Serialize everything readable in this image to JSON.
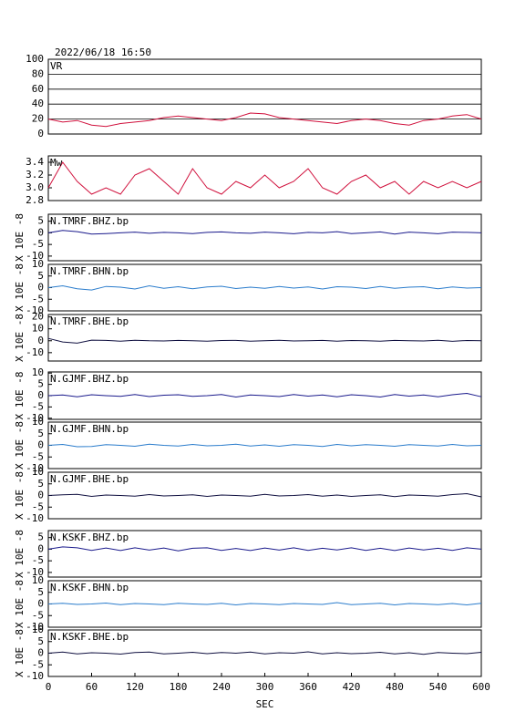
{
  "chart_data": [
    {
      "type": "line",
      "title": "2022/06/18 16:50",
      "grid": true,
      "xlim": [
        0,
        600
      ],
      "ylim": [
        0,
        100
      ],
      "yticks": [
        0,
        20,
        40,
        60,
        80,
        100
      ],
      "x": [
        0,
        20,
        40,
        60,
        80,
        100,
        120,
        140,
        160,
        180,
        200,
        220,
        240,
        260,
        280,
        300,
        320,
        340,
        360,
        380,
        400,
        420,
        440,
        460,
        480,
        500,
        520,
        540,
        560,
        580,
        600
      ],
      "series": [
        {
          "name": "VR",
          "color": "#d0103c",
          "values": [
            20,
            16,
            18,
            12,
            10,
            14,
            16,
            18,
            22,
            24,
            22,
            20,
            18,
            22,
            28,
            27,
            22,
            20,
            18,
            16,
            14,
            18,
            20,
            18,
            14,
            12,
            18,
            20,
            24,
            26,
            20
          ]
        }
      ]
    },
    {
      "type": "line",
      "grid": false,
      "xlim": [
        0,
        600
      ],
      "ylim": [
        2.8,
        3.5
      ],
      "yticks": [
        2.8,
        {
          "value": 3.0,
          "label": "3.0"
        },
        3.2,
        3.4
      ],
      "x": [
        0,
        20,
        40,
        60,
        80,
        100,
        120,
        140,
        160,
        180,
        200,
        220,
        240,
        260,
        280,
        300,
        320,
        340,
        360,
        380,
        400,
        420,
        440,
        460,
        480,
        500,
        520,
        540,
        560,
        580,
        600
      ],
      "series": [
        {
          "name": "Mw",
          "color": "#d0103c",
          "values": [
            3.0,
            3.4,
            3.1,
            2.9,
            3.0,
            2.9,
            3.2,
            3.3,
            3.1,
            2.9,
            3.3,
            3.0,
            2.9,
            3.1,
            3.0,
            3.2,
            3.0,
            3.1,
            3.3,
            3.0,
            2.9,
            3.1,
            3.2,
            3.0,
            3.1,
            2.9,
            3.1,
            3.0,
            3.1,
            3.0,
            3.1
          ]
        }
      ]
    },
    {
      "type": "line",
      "ylabel": "X 10E -8",
      "xlim": [
        0,
        600
      ],
      "ylim": [
        -12,
        8
      ],
      "yticks": [
        -10,
        -5,
        0,
        5
      ],
      "x": [
        0,
        20,
        40,
        60,
        80,
        100,
        120,
        140,
        160,
        180,
        200,
        220,
        240,
        260,
        280,
        300,
        320,
        340,
        360,
        380,
        400,
        420,
        440,
        460,
        480,
        500,
        520,
        540,
        560,
        580,
        600
      ],
      "series": [
        {
          "name": "N.TMRF.BHZ.bp",
          "color": "#1a1a8c",
          "values": [
            0,
            1,
            0.5,
            -0.5,
            -0.3,
            0,
            0.3,
            -0.2,
            0.2,
            0,
            -0.3,
            0.2,
            0.4,
            0,
            -0.2,
            0.3,
            0,
            -0.4,
            0.2,
            0,
            0.5,
            -0.3,
            0,
            0.4,
            -0.5,
            0.3,
            0,
            -0.4,
            0.3,
            0.2,
            0
          ]
        }
      ]
    },
    {
      "type": "line",
      "ylabel": "X 10E -8",
      "xlim": [
        0,
        600
      ],
      "ylim": [
        -10,
        10
      ],
      "yticks": [
        -10,
        -5,
        0,
        5,
        10
      ],
      "x": [
        0,
        20,
        40,
        60,
        80,
        100,
        120,
        140,
        160,
        180,
        200,
        220,
        240,
        260,
        280,
        300,
        320,
        340,
        360,
        380,
        400,
        420,
        440,
        460,
        480,
        500,
        520,
        540,
        560,
        580,
        600
      ],
      "series": [
        {
          "name": "N.TMRF.BHN.bp",
          "color": "#2a7ccc",
          "values": [
            0,
            0.8,
            -0.5,
            -1,
            0.5,
            0.2,
            -0.6,
            0.8,
            -0.3,
            0.4,
            -0.5,
            0.3,
            0.6,
            -0.4,
            0.2,
            -0.3,
            0.5,
            -0.2,
            0.3,
            -0.6,
            0.4,
            0.2,
            -0.4,
            0.5,
            -0.3,
            0.2,
            0.4,
            -0.5,
            0.3,
            -0.2,
            0
          ]
        }
      ]
    },
    {
      "type": "line",
      "ylabel": "X 10E -8",
      "xlim": [
        0,
        600
      ],
      "ylim": [
        -17,
        22
      ],
      "yticks": [
        -10,
        0,
        10,
        20
      ],
      "x": [
        0,
        20,
        40,
        60,
        80,
        100,
        120,
        140,
        160,
        180,
        200,
        220,
        240,
        260,
        280,
        300,
        320,
        340,
        360,
        380,
        400,
        420,
        440,
        460,
        480,
        500,
        520,
        540,
        560,
        580,
        600
      ],
      "series": [
        {
          "name": "N.TMRF.BHE.bp",
          "color": "#101040",
          "values": [
            2,
            -1,
            -2,
            0.5,
            0.3,
            -0.3,
            0.4,
            0,
            -0.2,
            0.3,
            0,
            -0.4,
            0.2,
            0.3,
            -0.3,
            0,
            0.4,
            -0.2,
            0,
            0.3,
            -0.4,
            0.2,
            0,
            -0.3,
            0.3,
            0,
            -0.2,
            0.4,
            -0.5,
            0.2,
            0
          ]
        }
      ]
    },
    {
      "type": "line",
      "ylabel": "X 10E -8",
      "xlim": [
        0,
        600
      ],
      "ylim": [
        -10.5,
        10.5
      ],
      "yticks": [
        -10,
        -5,
        0,
        5,
        10
      ],
      "x": [
        0,
        20,
        40,
        60,
        80,
        100,
        120,
        140,
        160,
        180,
        200,
        220,
        240,
        260,
        280,
        300,
        320,
        340,
        360,
        380,
        400,
        420,
        440,
        460,
        480,
        500,
        520,
        540,
        560,
        580,
        600
      ],
      "series": [
        {
          "name": "N.GJMF.BHZ.bp",
          "color": "#1a1a8c",
          "values": [
            0,
            0.3,
            -0.5,
            0.4,
            0,
            -0.3,
            0.5,
            -0.4,
            0.2,
            0.4,
            -0.3,
            0,
            0.5,
            -0.6,
            0.3,
            0,
            -0.4,
            0.5,
            -0.2,
            0.3,
            -0.5,
            0.4,
            0,
            -0.6,
            0.5,
            -0.2,
            0.3,
            -0.5,
            0.4,
            1,
            -0.5
          ]
        }
      ]
    },
    {
      "type": "line",
      "ylabel": "X 10E -8",
      "xlim": [
        0,
        600
      ],
      "ylim": [
        -10,
        10
      ],
      "yticks": [
        -10,
        -5,
        0,
        5,
        10
      ],
      "x": [
        0,
        20,
        40,
        60,
        80,
        100,
        120,
        140,
        160,
        180,
        200,
        220,
        240,
        260,
        280,
        300,
        320,
        340,
        360,
        380,
        400,
        420,
        440,
        460,
        480,
        500,
        520,
        540,
        560,
        580,
        600
      ],
      "series": [
        {
          "name": "N.GJMF.BHN.bp",
          "color": "#2a7ccc",
          "values": [
            0,
            0.4,
            -0.6,
            -0.5,
            0.3,
            0,
            -0.4,
            0.5,
            0,
            -0.3,
            0.4,
            -0.2,
            0,
            0.5,
            -0.3,
            0.2,
            -0.4,
            0.3,
            0,
            -0.5,
            0.4,
            -0.2,
            0.3,
            0,
            -0.4,
            0.3,
            0,
            -0.3,
            0.4,
            -0.2,
            0
          ]
        }
      ]
    },
    {
      "type": "line",
      "ylabel": "X 10E -8",
      "xlim": [
        0,
        600
      ],
      "ylim": [
        -10,
        10
      ],
      "yticks": [
        -10,
        -5,
        0,
        5,
        10
      ],
      "x": [
        0,
        20,
        40,
        60,
        80,
        100,
        120,
        140,
        160,
        180,
        200,
        220,
        240,
        260,
        280,
        300,
        320,
        340,
        360,
        380,
        400,
        420,
        440,
        460,
        480,
        500,
        520,
        540,
        560,
        580,
        600
      ],
      "series": [
        {
          "name": "N.GJMF.BHE.bp",
          "color": "#101040",
          "values": [
            0,
            0.3,
            0.5,
            -0.4,
            0.2,
            0,
            -0.3,
            0.4,
            -0.2,
            0,
            0.3,
            -0.4,
            0.2,
            0,
            -0.3,
            0.5,
            -0.2,
            0,
            0.4,
            -0.3,
            0.2,
            -0.4,
            0,
            0.3,
            -0.5,
            0.2,
            0,
            -0.3,
            0.4,
            0.8,
            -0.6
          ]
        }
      ]
    },
    {
      "type": "line",
      "ylabel": "X 10E -8",
      "xlim": [
        0,
        600
      ],
      "ylim": [
        -12,
        8
      ],
      "yticks": [
        -10,
        -5,
        0,
        5
      ],
      "x": [
        0,
        20,
        40,
        60,
        80,
        100,
        120,
        140,
        160,
        180,
        200,
        220,
        240,
        260,
        280,
        300,
        320,
        340,
        360,
        380,
        400,
        420,
        440,
        460,
        480,
        500,
        520,
        540,
        560,
        580,
        600
      ],
      "series": [
        {
          "name": "N.KSKF.BHZ.bp",
          "color": "#1a1a8c",
          "values": [
            0,
            1,
            0.6,
            -0.5,
            0.5,
            -0.6,
            0.6,
            -0.4,
            0.5,
            -0.7,
            0.4,
            0.6,
            -0.5,
            0.3,
            -0.6,
            0.5,
            -0.4,
            0.6,
            -0.5,
            0.4,
            -0.3,
            0.6,
            -0.5,
            0.4,
            -0.6,
            0.5,
            -0.3,
            0.4,
            -0.5,
            0.6,
            0
          ]
        }
      ]
    },
    {
      "type": "line",
      "ylabel": "X 10E -8",
      "xlim": [
        0,
        600
      ],
      "ylim": [
        -10,
        10
      ],
      "yticks": [
        -10,
        -5,
        0,
        5,
        10
      ],
      "x": [
        0,
        20,
        40,
        60,
        80,
        100,
        120,
        140,
        160,
        180,
        200,
        220,
        240,
        260,
        280,
        300,
        320,
        340,
        360,
        380,
        400,
        420,
        440,
        460,
        480,
        500,
        520,
        540,
        560,
        580,
        600
      ],
      "series": [
        {
          "name": "N.KSKF.BHN.bp",
          "color": "#2a7ccc",
          "values": [
            0,
            0.3,
            -0.2,
            0,
            0.4,
            -0.3,
            0.2,
            0,
            -0.3,
            0.3,
            0,
            -0.2,
            0.3,
            -0.4,
            0.2,
            0,
            -0.3,
            0.2,
            0,
            -0.2,
            0.6,
            -0.3,
            0,
            0.3,
            -0.4,
            0.2,
            0,
            -0.3,
            0.2,
            -0.4,
            0.3
          ]
        }
      ]
    },
    {
      "type": "line",
      "ylabel": "X 10E -8",
      "xlabel": "SEC",
      "xlim": [
        0,
        600
      ],
      "ylim": [
        -10,
        10
      ],
      "yticks": [
        -10,
        -5,
        0,
        5,
        10
      ],
      "xticks": [
        0,
        60,
        120,
        180,
        240,
        300,
        360,
        420,
        480,
        540,
        600
      ],
      "x": [
        0,
        20,
        40,
        60,
        80,
        100,
        120,
        140,
        160,
        180,
        200,
        220,
        240,
        260,
        280,
        300,
        320,
        340,
        360,
        380,
        400,
        420,
        440,
        460,
        480,
        500,
        520,
        540,
        560,
        580,
        600
      ],
      "series": [
        {
          "name": "N.KSKF.BHE.bp",
          "color": "#101040",
          "values": [
            0,
            0.5,
            -0.3,
            0.2,
            0,
            -0.4,
            0.3,
            0.5,
            -0.3,
            0,
            0.4,
            -0.2,
            0.3,
            0,
            0.5,
            -0.3,
            0.2,
            0,
            0.6,
            -0.3,
            0.2,
            -0.2,
            0,
            0.4,
            -0.3,
            0.2,
            -0.5,
            0.3,
            0,
            -0.2,
            0.4
          ]
        }
      ]
    }
  ]
}
